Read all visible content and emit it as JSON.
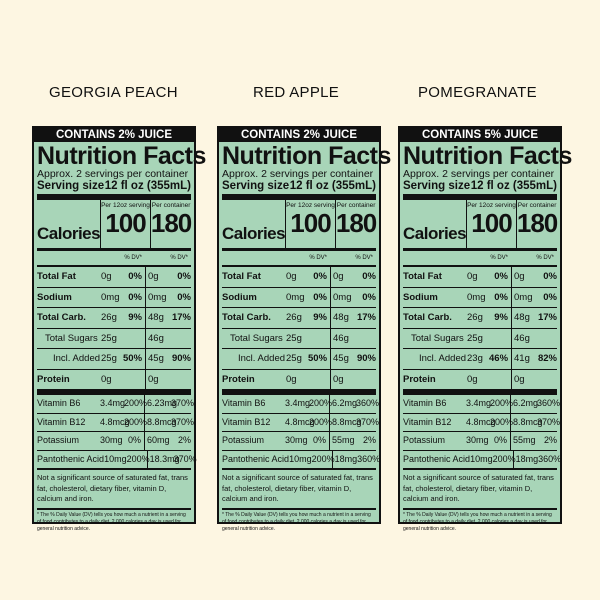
{
  "panels": [
    {
      "title": "GEORGIA PEACH",
      "juice": "CONTAINS 2% JUICE",
      "nf_title": "Nutrition Facts",
      "approx": "Approx. 2 servings per container",
      "serving_label": "Serving size",
      "serving_value": "12 fl oz (355mL)",
      "calories_label": "Calories",
      "col1_header": "Per 12oz serving",
      "col2_header": "Per container",
      "cal1": "100",
      "cal2": "180",
      "dv_header": "% DV*",
      "nutrients": [
        {
          "name": "Total Fat",
          "v1": "0g",
          "p1": "0%",
          "v2": "0g",
          "p2": "0%"
        },
        {
          "name": "Sodium",
          "v1": "0mg",
          "p1": "0%",
          "v2": "0mg",
          "p2": "0%"
        },
        {
          "name": "Total Carb.",
          "v1": "26g",
          "p1": "9%",
          "v2": "48g",
          "p2": "17%"
        },
        {
          "name": "Total Sugars",
          "v1": "25g",
          "p1": "",
          "v2": "46g",
          "p2": ""
        },
        {
          "name": "Incl. Added Sugars",
          "v1": "25g",
          "p1": "50%",
          "v2": "45g",
          "p2": "90%"
        },
        {
          "name": "Protein",
          "v1": "0g",
          "p1": "",
          "v2": "0g",
          "p2": ""
        }
      ],
      "vitamins": [
        {
          "name": "Vitamin B6",
          "v1": "3.4mg",
          "p1": "200%",
          "v2": "6.23mg",
          "p2": "370%"
        },
        {
          "name": "Vitamin B12",
          "v1": "4.8mcg",
          "p1": "200%",
          "v2": "8.8mcg",
          "p2": "370%"
        },
        {
          "name": "Potassium",
          "v1": "30mg",
          "p1": "0%",
          "v2": "60mg",
          "p2": "2%"
        },
        {
          "name": "Pantothenic Acid",
          "v1": "10mg",
          "p1": "200%",
          "v2": "18.3mg",
          "p2": "370%"
        }
      ],
      "not_significant": "Not a significant source of saturated fat, trans fat, cholesterol, dietary fiber, vitamin D, calcium and iron.",
      "footnote": "* The % Daily Value (DV) tells you how much a nutrient in a serving of food contributes to a daily diet. 2,000 calories a day is used for general nutrition advice."
    },
    {
      "title": "RED APPLE",
      "juice": "CONTAINS 2% JUICE",
      "nf_title": "Nutrition Facts",
      "approx": "Approx. 2 servings per container",
      "serving_label": "Serving size",
      "serving_value": "12 fl oz (355mL)",
      "calories_label": "Calories",
      "col1_header": "Per 12oz serving",
      "col2_header": "Per container",
      "cal1": "100",
      "cal2": "180",
      "dv_header": "% DV*",
      "nutrients": [
        {
          "name": "Total Fat",
          "v1": "0g",
          "p1": "0%",
          "v2": "0g",
          "p2": "0%"
        },
        {
          "name": "Sodium",
          "v1": "0mg",
          "p1": "0%",
          "v2": "0mg",
          "p2": "0%"
        },
        {
          "name": "Total Carb.",
          "v1": "26g",
          "p1": "9%",
          "v2": "48g",
          "p2": "17%"
        },
        {
          "name": "Total Sugars",
          "v1": "25g",
          "p1": "",
          "v2": "46g",
          "p2": ""
        },
        {
          "name": "Incl. Added Sugars",
          "v1": "25g",
          "p1": "50%",
          "v2": "45g",
          "p2": "90%"
        },
        {
          "name": "Protein",
          "v1": "0g",
          "p1": "",
          "v2": "0g",
          "p2": ""
        }
      ],
      "vitamins": [
        {
          "name": "Vitamin B6",
          "v1": "3.4mg",
          "p1": "200%",
          "v2": "6.2mg",
          "p2": "360%"
        },
        {
          "name": "Vitamin B12",
          "v1": "4.8mcg",
          "p1": "200%",
          "v2": "8.8mcg",
          "p2": "370%"
        },
        {
          "name": "Potassium",
          "v1": "30mg",
          "p1": "0%",
          "v2": "55mg",
          "p2": "2%"
        },
        {
          "name": "Pantothenic Acid",
          "v1": "10mg",
          "p1": "200%",
          "v2": "18mg",
          "p2": "360%"
        }
      ],
      "not_significant": "Not a significant source of saturated fat, trans fat, cholesterol, dietary fiber, vitamin D, calcium and iron.",
      "footnote": "* The % Daily Value (DV) tells you how much a nutrient in a serving of food contributes to a daily diet. 2,000 calories a day is used for general nutrition advice."
    },
    {
      "title": "POMEGRANATE",
      "juice": "CONTAINS 5% JUICE",
      "nf_title": "Nutrition Facts",
      "approx": "Approx. 2 servings per container",
      "serving_label": "Serving size",
      "serving_value": "12 fl oz (355mL)",
      "calories_label": "Calories",
      "col1_header": "Per 12oz serving",
      "col2_header": "Per container",
      "cal1": "100",
      "cal2": "180",
      "dv_header": "% DV*",
      "nutrients": [
        {
          "name": "Total Fat",
          "v1": "0g",
          "p1": "0%",
          "v2": "0g",
          "p2": "0%"
        },
        {
          "name": "Sodium",
          "v1": "0mg",
          "p1": "0%",
          "v2": "0mg",
          "p2": "0%"
        },
        {
          "name": "Total Carb.",
          "v1": "26g",
          "p1": "9%",
          "v2": "48g",
          "p2": "17%"
        },
        {
          "name": "Total Sugars",
          "v1": "25g",
          "p1": "",
          "v2": "46g",
          "p2": ""
        },
        {
          "name": "Incl. Added Sugars",
          "v1": "23g",
          "p1": "46%",
          "v2": "41g",
          "p2": "82%"
        },
        {
          "name": "Protein",
          "v1": "0g",
          "p1": "",
          "v2": "0g",
          "p2": ""
        }
      ],
      "vitamins": [
        {
          "name": "Vitamin B6",
          "v1": "3.4mg",
          "p1": "200%",
          "v2": "6.2mg",
          "p2": "360%"
        },
        {
          "name": "Vitamin B12",
          "v1": "4.8mcg",
          "p1": "200%",
          "v2": "8.8mcg",
          "p2": "370%"
        },
        {
          "name": "Potassium",
          "v1": "30mg",
          "p1": "0%",
          "v2": "55mg",
          "p2": "2%"
        },
        {
          "name": "Pantothenic Acid",
          "v1": "10mg",
          "p1": "200%",
          "v2": "18mg",
          "p2": "360%"
        }
      ],
      "not_significant": "Not a significant source of saturated fat, trans fat, cholesterol, dietary fiber, vitamin D, calcium and iron.",
      "footnote": "* The % Daily Value (DV) tells you how much a nutrient in a serving of food contributes to a daily diet. 2,000 calories a day is used for general nutrition advice."
    }
  ],
  "colors": {
    "background": "#fdf6e2",
    "label": "#a8d5b8",
    "ink": "#111111"
  }
}
